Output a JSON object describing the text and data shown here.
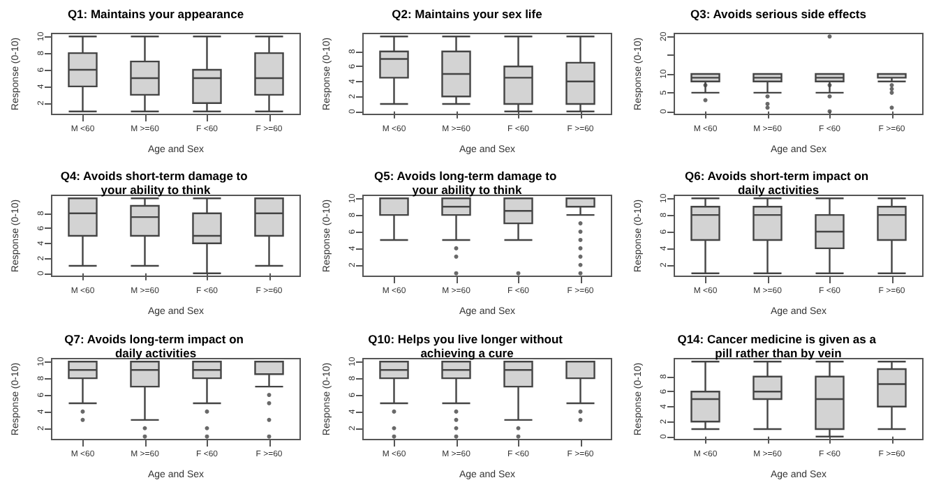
{
  "chart_data": [
    {
      "type": "box",
      "title": "Q1: Maintains your appearance",
      "xlabel": "Age and Sex",
      "ylabel": "Response (0-10)",
      "categories": [
        "M <60",
        "M >=60",
        "F <60",
        "F >=60"
      ],
      "ylim": [
        0.64,
        10.36
      ],
      "yticks": [
        2,
        4,
        6,
        8,
        10
      ],
      "series": [
        {
          "color": "#d3d3d3",
          "boxes": [
            {
              "low": 1,
              "q1": 4,
              "median": 6,
              "q3": 8,
              "high": 10
            },
            {
              "low": 1,
              "q1": 3,
              "median": 5,
              "q3": 7,
              "high": 10
            },
            {
              "low": 1,
              "q1": 2,
              "median": 5,
              "q3": 6,
              "high": 10
            },
            {
              "low": 1,
              "q1": 3,
              "median": 5,
              "q3": 8,
              "high": 10
            }
          ]
        }
      ]
    },
    {
      "type": "box",
      "title": "Q2: Maintains your sex life",
      "xlabel": "Age and Sex",
      "ylabel": "Response (0-10)",
      "categories": [
        "M <60",
        "M >=60",
        "F <60",
        "F >=60"
      ],
      "ylim": [
        -0.4,
        10.4
      ],
      "yticks": [
        0,
        2,
        4,
        6,
        8
      ],
      "series": [
        {
          "color": "#d3d3d3",
          "boxes": [
            {
              "low": 1,
              "q1": 4.5,
              "median": 7,
              "q3": 8,
              "high": 10
            },
            {
              "low": 1,
              "q1": 2,
              "median": 5,
              "q3": 8,
              "high": 10
            },
            {
              "low": 0,
              "q1": 1,
              "median": 4.5,
              "q3": 6,
              "high": 10
            },
            {
              "low": 0,
              "q1": 1,
              "median": 4,
              "q3": 6.5,
              "high": 10
            }
          ]
        }
      ]
    },
    {
      "type": "box",
      "title": "Q3: Avoids serious side effects",
      "xlabel": "Age and Sex",
      "ylabel": "Response (0-10)",
      "categories": [
        "M <60",
        "M >=60",
        "F <60",
        "F >=60"
      ],
      "ylim": [
        -0.8,
        20.8
      ],
      "yticks": [
        0,
        5,
        10,
        {
          "value": 15,
          "label": null
        },
        20
      ],
      "series": [
        {
          "color": "#d3d3d3",
          "boxes": [
            {
              "low": 5,
              "q1": 8,
              "median": 9,
              "q3": 10,
              "high": 10,
              "outliers": [
                7,
                3
              ]
            },
            {
              "low": 5,
              "q1": 8,
              "median": 9,
              "q3": 10,
              "high": 10,
              "outliers": [
                4,
                2,
                1
              ]
            },
            {
              "low": 5,
              "q1": 8,
              "median": 9,
              "q3": 10,
              "high": 10,
              "outliers": [
                20,
                7,
                4,
                0
              ]
            },
            {
              "low": 8,
              "q1": 9,
              "median": 10,
              "q3": 10,
              "high": 10,
              "outliers": [
                7,
                6,
                5,
                1
              ]
            }
          ]
        }
      ]
    },
    {
      "type": "box",
      "title": "Q4: Avoids short-term damage to your ability to think",
      "xlabel": "Age and Sex",
      "ylabel": "Response (0-10)",
      "categories": [
        "M <60",
        "M >=60",
        "F <60",
        "F >=60"
      ],
      "ylim": [
        -0.4,
        10.4
      ],
      "yticks": [
        0,
        2,
        4,
        6,
        8
      ],
      "series": [
        {
          "color": "#d3d3d3",
          "boxes": [
            {
              "low": 1,
              "q1": 5,
              "median": 8,
              "q3": 10,
              "high": 10
            },
            {
              "low": 1,
              "q1": 5,
              "median": 7.5,
              "q3": 9,
              "high": 10
            },
            {
              "low": 0,
              "q1": 4,
              "median": 5,
              "q3": 8,
              "high": 10
            },
            {
              "low": 1,
              "q1": 5,
              "median": 8,
              "q3": 10,
              "high": 10
            }
          ]
        }
      ]
    },
    {
      "type": "box",
      "title": "Q5: Avoids long-term damage to your ability to think",
      "xlabel": "Age and Sex",
      "ylabel": "Response (0-10)",
      "categories": [
        "M <60",
        "M >=60",
        "F <60",
        "F >=60"
      ],
      "ylim": [
        0.64,
        10.36
      ],
      "yticks": [
        2,
        4,
        6,
        8,
        10
      ],
      "series": [
        {
          "color": "#d3d3d3",
          "boxes": [
            {
              "low": 5,
              "q1": 8,
              "median": 10,
              "q3": 10,
              "high": 10
            },
            {
              "low": 5,
              "q1": 8,
              "median": 9,
              "q3": 10,
              "high": 10,
              "outliers": [
                4,
                3,
                1
              ]
            },
            {
              "low": 5,
              "q1": 7,
              "median": 8.5,
              "q3": 10,
              "high": 10,
              "outliers": [
                1
              ]
            },
            {
              "low": 8,
              "q1": 9,
              "median": 10,
              "q3": 10,
              "high": 10,
              "outliers": [
                7,
                6,
                5,
                4,
                3,
                2,
                1
              ]
            }
          ]
        }
      ]
    },
    {
      "type": "box",
      "title": "Q6: Avoids short-term impact on daily activities",
      "xlabel": "Age and Sex",
      "ylabel": "Response (0-10)",
      "categories": [
        "M <60",
        "M >=60",
        "F <60",
        "F >=60"
      ],
      "ylim": [
        0.64,
        10.36
      ],
      "yticks": [
        2,
        4,
        6,
        8,
        10
      ],
      "series": [
        {
          "color": "#d3d3d3",
          "boxes": [
            {
              "low": 1,
              "q1": 5,
              "median": 8,
              "q3": 9,
              "high": 10
            },
            {
              "low": 1,
              "q1": 5,
              "median": 8,
              "q3": 9,
              "high": 10
            },
            {
              "low": 1,
              "q1": 4,
              "median": 6,
              "q3": 8,
              "high": 10
            },
            {
              "low": 1,
              "q1": 5,
              "median": 8,
              "q3": 9,
              "high": 10
            }
          ]
        }
      ]
    },
    {
      "type": "box",
      "title": "Q7: Avoids long-term impact on daily activities",
      "xlabel": "Age and Sex",
      "ylabel": "Response (0-10)",
      "categories": [
        "M <60",
        "M >=60",
        "F <60",
        "F >=60"
      ],
      "ylim": [
        0.64,
        10.36
      ],
      "yticks": [
        2,
        4,
        6,
        8,
        10
      ],
      "series": [
        {
          "color": "#d3d3d3",
          "boxes": [
            {
              "low": 5,
              "q1": 8,
              "median": 9,
              "q3": 10,
              "high": 10,
              "outliers": [
                4,
                3
              ]
            },
            {
              "low": 3,
              "q1": 7,
              "median": 9,
              "q3": 10,
              "high": 10,
              "outliers": [
                2,
                1
              ]
            },
            {
              "low": 5,
              "q1": 8,
              "median": 9,
              "q3": 10,
              "high": 10,
              "outliers": [
                4,
                2,
                1
              ]
            },
            {
              "low": 7,
              "q1": 8.5,
              "median": 10,
              "q3": 10,
              "high": 10,
              "outliers": [
                6,
                5,
                3,
                1
              ]
            }
          ]
        }
      ]
    },
    {
      "type": "box",
      "title": "Q10: Helps you live longer without achieving a cure",
      "xlabel": "Age and Sex",
      "ylabel": "Response (0-10)",
      "categories": [
        "M <60",
        "M >=60",
        "F <60",
        "F >=60"
      ],
      "ylim": [
        0.64,
        10.36
      ],
      "yticks": [
        2,
        4,
        6,
        8,
        10
      ],
      "series": [
        {
          "color": "#d3d3d3",
          "boxes": [
            {
              "low": 5,
              "q1": 8,
              "median": 9,
              "q3": 10,
              "high": 10,
              "outliers": [
                4,
                2,
                1
              ]
            },
            {
              "low": 5,
              "q1": 8,
              "median": 9,
              "q3": 10,
              "high": 10,
              "outliers": [
                4,
                3,
                2,
                1
              ]
            },
            {
              "low": 3,
              "q1": 7,
              "median": 9,
              "q3": 10,
              "high": 10,
              "outliers": [
                2,
                1
              ]
            },
            {
              "low": 5,
              "q1": 8,
              "median": 10,
              "q3": 10,
              "high": 10,
              "outliers": [
                4,
                3
              ]
            }
          ]
        }
      ]
    },
    {
      "type": "box",
      "title": "Q14: Cancer medicine is given as a pill rather than by vein",
      "xlabel": "Age and Sex",
      "ylabel": "Response (0-10)",
      "categories": [
        "M <60",
        "M >=60",
        "F <60",
        "F >=60"
      ],
      "ylim": [
        -0.4,
        10.4
      ],
      "yticks": [
        0,
        2,
        4,
        6,
        8
      ],
      "series": [
        {
          "color": "#d3d3d3",
          "boxes": [
            {
              "low": 1,
              "q1": 2,
              "median": 5,
              "q3": 6,
              "high": 10
            },
            {
              "low": 1,
              "q1": 5,
              "median": 6,
              "q3": 8,
              "high": 10
            },
            {
              "low": 0,
              "q1": 1,
              "median": 5,
              "q3": 8,
              "high": 10
            },
            {
              "low": 1,
              "q1": 4,
              "median": 7,
              "q3": 9,
              "high": 10
            }
          ]
        }
      ]
    }
  ]
}
